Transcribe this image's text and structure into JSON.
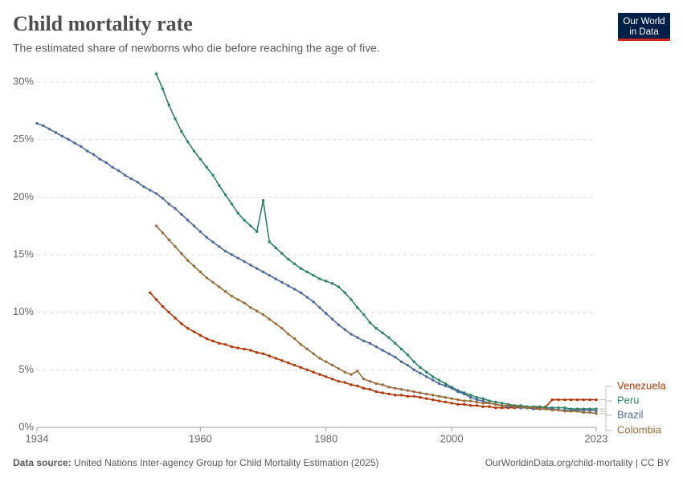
{
  "logo": {
    "line1": "Our World",
    "line2": "in Data"
  },
  "chart_data": {
    "type": "line",
    "title": "Child mortality rate",
    "subtitle": "The estimated share of newborns who die before reaching the age of five.",
    "source_label": "Data source:",
    "source": "United Nations Inter-agency Group for Child Mortality Estimation (2025)",
    "footer": "OurWorldinData.org/child-mortality | CC BY",
    "xlim": [
      1934,
      2023
    ],
    "xticks": [
      1934,
      1960,
      1980,
      2000,
      2023
    ],
    "ylim": [
      0,
      30
    ],
    "yticks": [
      {
        "value": 0,
        "label": "0%"
      },
      {
        "value": 5,
        "label": "5%"
      },
      {
        "value": 10,
        "label": "10%"
      },
      {
        "value": 15,
        "label": "15%"
      },
      {
        "value": 20,
        "label": "20%"
      },
      {
        "value": 25,
        "label": "25%"
      },
      {
        "value": 30,
        "label": "30%"
      }
    ],
    "grid": true,
    "x": [
      1934,
      1935,
      1936,
      1937,
      1938,
      1939,
      1940,
      1941,
      1942,
      1943,
      1944,
      1945,
      1946,
      1947,
      1948,
      1949,
      1950,
      1951,
      1952,
      1953,
      1954,
      1955,
      1956,
      1957,
      1958,
      1959,
      1960,
      1961,
      1962,
      1963,
      1964,
      1965,
      1966,
      1967,
      1968,
      1969,
      1970,
      1971,
      1972,
      1973,
      1974,
      1975,
      1976,
      1977,
      1978,
      1979,
      1980,
      1981,
      1982,
      1983,
      1984,
      1985,
      1986,
      1987,
      1988,
      1989,
      1990,
      1991,
      1992,
      1993,
      1994,
      1995,
      1996,
      1997,
      1998,
      1999,
      2000,
      2001,
      2002,
      2003,
      2004,
      2005,
      2006,
      2007,
      2008,
      2009,
      2010,
      2011,
      2012,
      2013,
      2014,
      2015,
      2016,
      2017,
      2018,
      2019,
      2020,
      2021,
      2022,
      2023
    ],
    "series": [
      {
        "name": "Venezuela",
        "color": "#b13507",
        "values": [
          null,
          null,
          null,
          null,
          null,
          null,
          null,
          null,
          null,
          null,
          null,
          null,
          null,
          null,
          null,
          null,
          null,
          null,
          11.7,
          11.1,
          10.5,
          10.0,
          9.5,
          9.0,
          8.6,
          8.3,
          8.0,
          7.7,
          7.5,
          7.3,
          7.2,
          7.0,
          6.9,
          6.8,
          6.7,
          6.5,
          6.4,
          6.2,
          6.0,
          5.8,
          5.6,
          5.4,
          5.2,
          5.0,
          4.8,
          4.6,
          4.4,
          4.2,
          4.0,
          3.9,
          3.7,
          3.6,
          3.4,
          3.3,
          3.1,
          3.0,
          2.9,
          2.8,
          2.8,
          2.7,
          2.7,
          2.6,
          2.5,
          2.4,
          2.3,
          2.2,
          2.1,
          2.0,
          2.0,
          1.9,
          1.9,
          1.8,
          1.8,
          1.7,
          1.7,
          1.7,
          1.7,
          1.7,
          1.7,
          1.7,
          1.7,
          1.8,
          2.4,
          2.4,
          2.4,
          2.4,
          2.4,
          2.4,
          2.4,
          2.4
        ]
      },
      {
        "name": "Peru",
        "color": "#2c8465",
        "values": [
          null,
          null,
          null,
          null,
          null,
          null,
          null,
          null,
          null,
          null,
          null,
          null,
          null,
          null,
          null,
          null,
          null,
          null,
          null,
          30.7,
          29.4,
          28.0,
          26.8,
          25.7,
          24.8,
          24.0,
          23.3,
          22.6,
          21.9,
          21.0,
          20.2,
          19.4,
          18.6,
          18.0,
          17.5,
          17.0,
          19.7,
          16.1,
          15.6,
          15.1,
          14.6,
          14.2,
          13.8,
          13.5,
          13.2,
          12.9,
          12.7,
          12.5,
          12.2,
          11.7,
          11.1,
          10.4,
          9.8,
          9.1,
          8.6,
          8.2,
          7.8,
          7.3,
          6.8,
          6.3,
          5.7,
          5.2,
          4.8,
          4.4,
          4.1,
          3.8,
          3.5,
          3.2,
          3.0,
          2.8,
          2.6,
          2.5,
          2.3,
          2.2,
          2.1,
          2.0,
          1.9,
          1.9,
          1.8,
          1.8,
          1.8,
          1.7,
          1.7,
          1.7,
          1.7,
          1.6,
          1.6,
          1.6,
          1.6,
          1.6
        ]
      },
      {
        "name": "Brazil",
        "color": "#4c6a9c",
        "values": [
          26.4,
          26.2,
          25.9,
          25.6,
          25.3,
          25.0,
          24.7,
          24.4,
          24.0,
          23.7,
          23.3,
          23.0,
          22.6,
          22.3,
          21.9,
          21.6,
          21.3,
          20.9,
          20.6,
          20.3,
          19.9,
          19.4,
          19.0,
          18.5,
          18.0,
          17.5,
          17.0,
          16.5,
          16.1,
          15.7,
          15.3,
          15.0,
          14.7,
          14.4,
          14.1,
          13.8,
          13.5,
          13.2,
          12.9,
          12.6,
          12.3,
          12.0,
          11.7,
          11.3,
          10.9,
          10.4,
          9.9,
          9.4,
          8.9,
          8.5,
          8.1,
          7.8,
          7.5,
          7.3,
          7.0,
          6.7,
          6.4,
          6.1,
          5.7,
          5.4,
          5.0,
          4.7,
          4.4,
          4.1,
          3.8,
          3.6,
          3.4,
          3.1,
          2.9,
          2.6,
          2.4,
          2.3,
          2.1,
          2.0,
          1.9,
          1.8,
          1.8,
          1.7,
          1.7,
          1.6,
          1.6,
          1.6,
          1.6,
          1.5,
          1.5,
          1.5,
          1.5,
          1.5,
          1.5,
          1.4
        ]
      },
      {
        "name": "Colombia",
        "color": "#996d39",
        "values": [
          null,
          null,
          null,
          null,
          null,
          null,
          null,
          null,
          null,
          null,
          null,
          null,
          null,
          null,
          null,
          null,
          null,
          null,
          null,
          17.5,
          16.9,
          16.3,
          15.7,
          15.1,
          14.5,
          14.0,
          13.5,
          13.0,
          12.6,
          12.2,
          11.8,
          11.4,
          11.1,
          10.8,
          10.4,
          10.1,
          9.8,
          9.4,
          9.0,
          8.6,
          8.1,
          7.7,
          7.2,
          6.8,
          6.4,
          6.0,
          5.7,
          5.4,
          5.1,
          4.8,
          4.6,
          4.9,
          4.2,
          4.0,
          3.8,
          3.7,
          3.5,
          3.4,
          3.3,
          3.2,
          3.1,
          3.0,
          2.9,
          2.8,
          2.7,
          2.6,
          2.5,
          2.4,
          2.3,
          2.3,
          2.2,
          2.1,
          2.1,
          2.0,
          1.9,
          1.9,
          1.8,
          1.8,
          1.7,
          1.7,
          1.6,
          1.6,
          1.5,
          1.5,
          1.4,
          1.4,
          1.4,
          1.3,
          1.3,
          1.2
        ]
      }
    ]
  }
}
